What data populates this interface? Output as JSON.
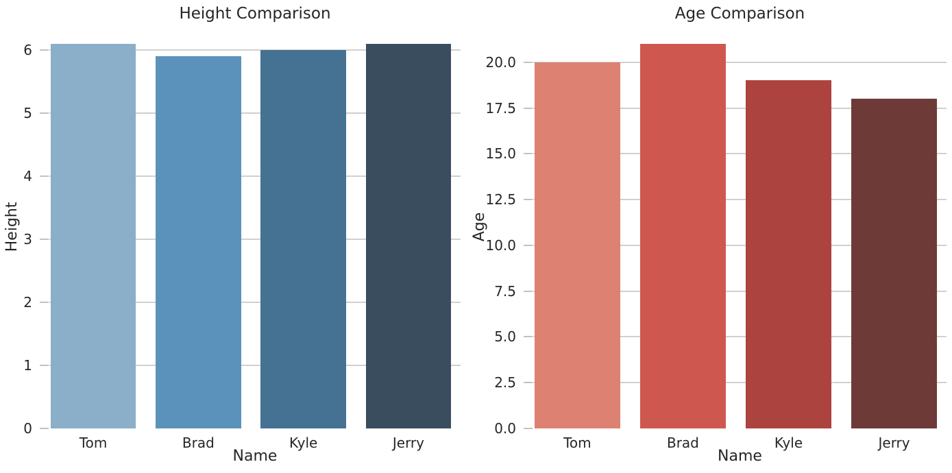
{
  "figure": {
    "background": "#ffffff",
    "text_color": "#262626",
    "grid_color": "#d0d0d0",
    "tick_color": "#c2c2c2"
  },
  "chart_data": [
    {
      "type": "bar",
      "title": "Height Comparison",
      "xlabel": "Name",
      "ylabel": "Height",
      "categories": [
        "Tom",
        "Brad",
        "Kyle",
        "Jerry"
      ],
      "values": [
        6.1,
        5.9,
        6.0,
        6.1
      ],
      "bar_colors": [
        "#8baec9",
        "#5b92bb",
        "#457293",
        "#3a4d5f"
      ],
      "ylim": [
        0,
        6.405
      ],
      "yticks": [
        {
          "value": 0,
          "label": "0"
        },
        {
          "value": 1,
          "label": "1"
        },
        {
          "value": 2,
          "label": "2"
        },
        {
          "value": 3,
          "label": "3"
        },
        {
          "value": 4,
          "label": "4"
        },
        {
          "value": 5,
          "label": "5"
        },
        {
          "value": 6,
          "label": "6"
        }
      ],
      "grid": "horizontal",
      "legend": "none"
    },
    {
      "type": "bar",
      "title": "Age Comparison",
      "xlabel": "Name",
      "ylabel": "Age",
      "categories": [
        "Tom",
        "Brad",
        "Kyle",
        "Jerry"
      ],
      "values": [
        20,
        21,
        19,
        18
      ],
      "bar_colors": [
        "#dd8173",
        "#ce584f",
        "#ad433e",
        "#6e3a38"
      ],
      "ylim": [
        0,
        22.05
      ],
      "yticks": [
        {
          "value": 0,
          "label": "0.0"
        },
        {
          "value": 2.5,
          "label": "2.5"
        },
        {
          "value": 5,
          "label": "5.0"
        },
        {
          "value": 7.5,
          "label": "7.5"
        },
        {
          "value": 10,
          "label": "10.0"
        },
        {
          "value": 12.5,
          "label": "12.5"
        },
        {
          "value": 15,
          "label": "15.0"
        },
        {
          "value": 17.5,
          "label": "17.5"
        },
        {
          "value": 20,
          "label": "20.0"
        }
      ],
      "grid": "horizontal",
      "legend": "none"
    }
  ]
}
